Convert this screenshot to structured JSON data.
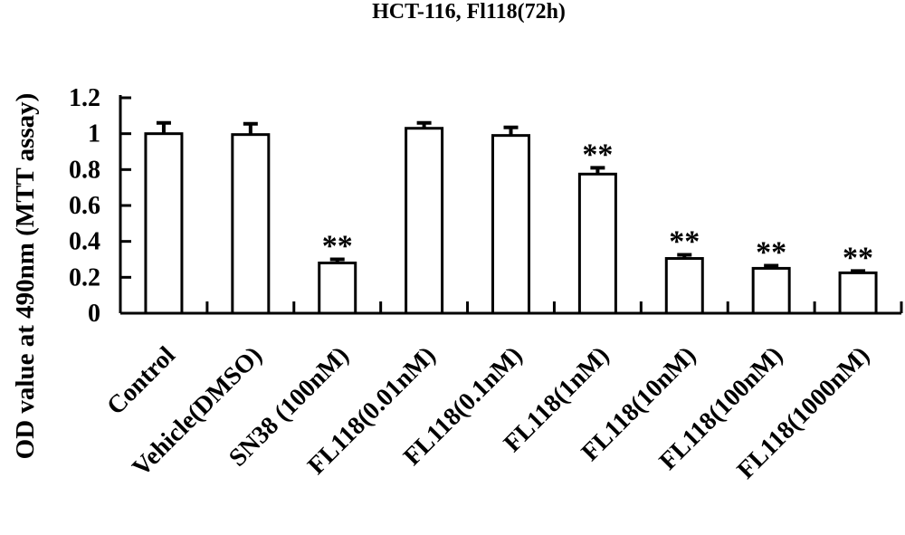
{
  "chart_data": {
    "type": "bar",
    "title": "HCT-116, Fl118(72h)",
    "xlabel": "",
    "ylabel": "OD value at 490nm (MTT assay)",
    "ylim": [
      0,
      1.2
    ],
    "yticks": [
      "0",
      "0.2",
      "0.4",
      "0.6",
      "0.8",
      "1",
      "1.2"
    ],
    "categories": [
      "Control",
      "Vehicle(DMSO)",
      "SN38 (100nM)",
      "FL118(0.01nM)",
      "FL118(0.1nM)",
      "FL118(1nM)",
      "FL118(10nM)",
      "FL118(100nM)",
      "FL118(1000nM)"
    ],
    "values": [
      1.0,
      0.995,
      0.28,
      1.03,
      0.99,
      0.775,
      0.305,
      0.25,
      0.225
    ],
    "errors": [
      0.06,
      0.06,
      0.02,
      0.03,
      0.045,
      0.035,
      0.02,
      0.015,
      0.01
    ],
    "annotations": [
      "",
      "",
      "**",
      "",
      "",
      "**",
      "**",
      "**",
      "**"
    ],
    "grid": false,
    "legend": "none"
  }
}
